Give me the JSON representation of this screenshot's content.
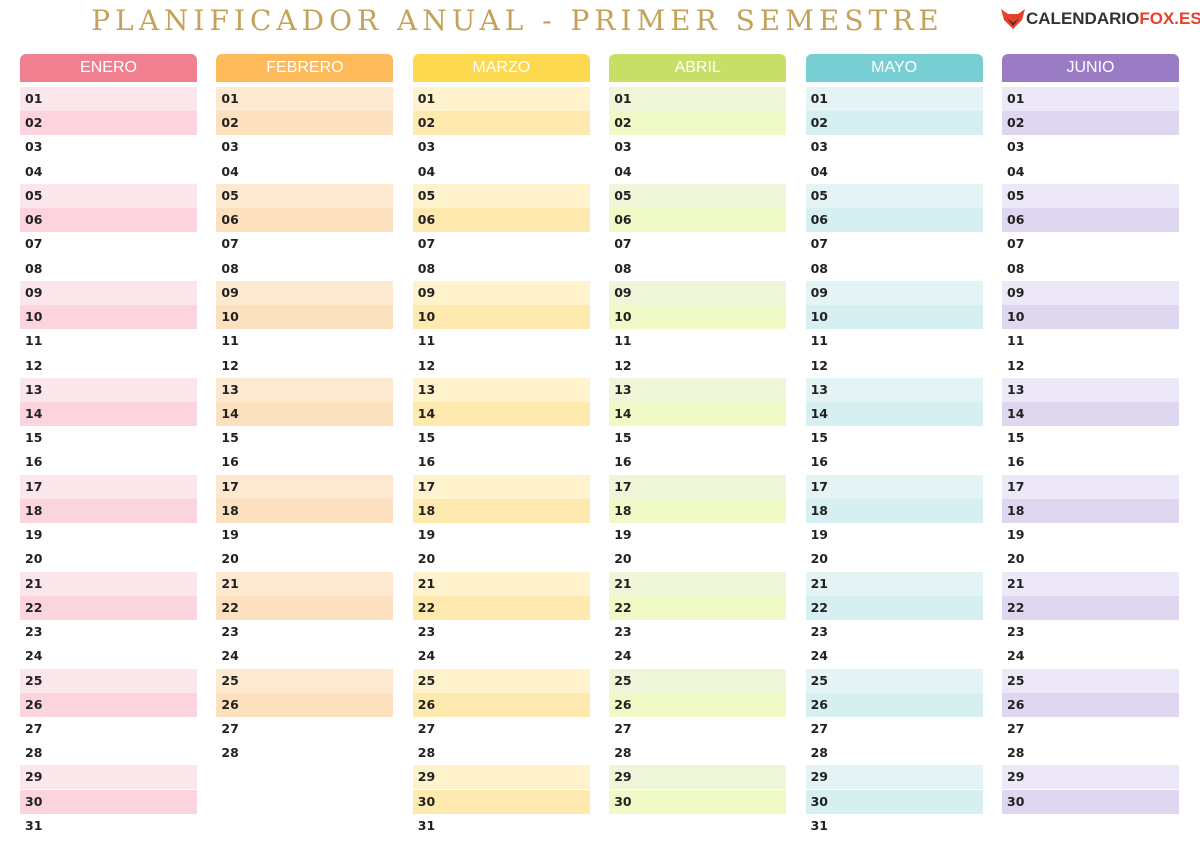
{
  "header": {
    "title": "PLANIFICADOR ANUAL - PRIMER SEMESTRE",
    "logo": [
      "CALENDARIO",
      "FOX.ES"
    ]
  },
  "months": [
    {
      "name": "ENERO",
      "color": "#f07f8f",
      "light": "#fbe6eb",
      "dark": "#fbd4dd",
      "days": [
        "01",
        "02",
        "03",
        "04",
        "05",
        "06",
        "07",
        "08",
        "09",
        "10",
        "11",
        "12",
        "13",
        "14",
        "15",
        "16",
        "17",
        "18",
        "19",
        "20",
        "21",
        "22",
        "23",
        "24",
        "25",
        "26",
        "27",
        "28",
        "29",
        "30",
        "31"
      ]
    },
    {
      "name": "FEBRERO",
      "color": "#fdb95a",
      "light": "#fde9d0",
      "dark": "#fde0bd",
      "days": [
        "01",
        "02",
        "03",
        "04",
        "05",
        "06",
        "07",
        "08",
        "09",
        "10",
        "11",
        "12",
        "13",
        "14",
        "15",
        "16",
        "17",
        "18",
        "19",
        "20",
        "21",
        "22",
        "23",
        "24",
        "25",
        "26",
        "27",
        "28"
      ]
    },
    {
      "name": "MARZO",
      "color": "#fcd94e",
      "light": "#fef3cd",
      "dark": "#feeaae",
      "days": [
        "01",
        "02",
        "03",
        "04",
        "05",
        "06",
        "07",
        "08",
        "09",
        "10",
        "11",
        "12",
        "13",
        "14",
        "15",
        "16",
        "17",
        "18",
        "19",
        "20",
        "21",
        "22",
        "23",
        "24",
        "25",
        "26",
        "27",
        "28",
        "29",
        "30",
        "31"
      ]
    },
    {
      "name": "ABRIL",
      "color": "#c7df67",
      "light": "#eef5d9",
      "dark": "#f0fac6",
      "days": [
        "01",
        "02",
        "03",
        "04",
        "05",
        "06",
        "07",
        "08",
        "09",
        "10",
        "11",
        "12",
        "13",
        "14",
        "15",
        "16",
        "17",
        "18",
        "19",
        "20",
        "21",
        "22",
        "23",
        "24",
        "25",
        "26",
        "27",
        "28",
        "29",
        "30"
      ]
    },
    {
      "name": "MAYO",
      "color": "#78cfd3",
      "light": "#e4f4f4",
      "dark": "#d6eff1",
      "days": [
        "01",
        "02",
        "03",
        "04",
        "05",
        "06",
        "07",
        "08",
        "09",
        "10",
        "11",
        "12",
        "13",
        "14",
        "15",
        "16",
        "17",
        "18",
        "19",
        "20",
        "21",
        "22",
        "23",
        "24",
        "25",
        "26",
        "27",
        "28",
        "29",
        "30",
        "31"
      ]
    },
    {
      "name": "JUNIO",
      "color": "#9a7cc4",
      "light": "#ece8f8",
      "dark": "#dfd6ef",
      "days": [
        "01",
        "02",
        "03",
        "04",
        "05",
        "06",
        "07",
        "08",
        "09",
        "10",
        "11",
        "12",
        "13",
        "14",
        "15",
        "16",
        "17",
        "18",
        "19",
        "20",
        "21",
        "22",
        "23",
        "24",
        "25",
        "26",
        "27",
        "28",
        "29",
        "30"
      ]
    }
  ]
}
